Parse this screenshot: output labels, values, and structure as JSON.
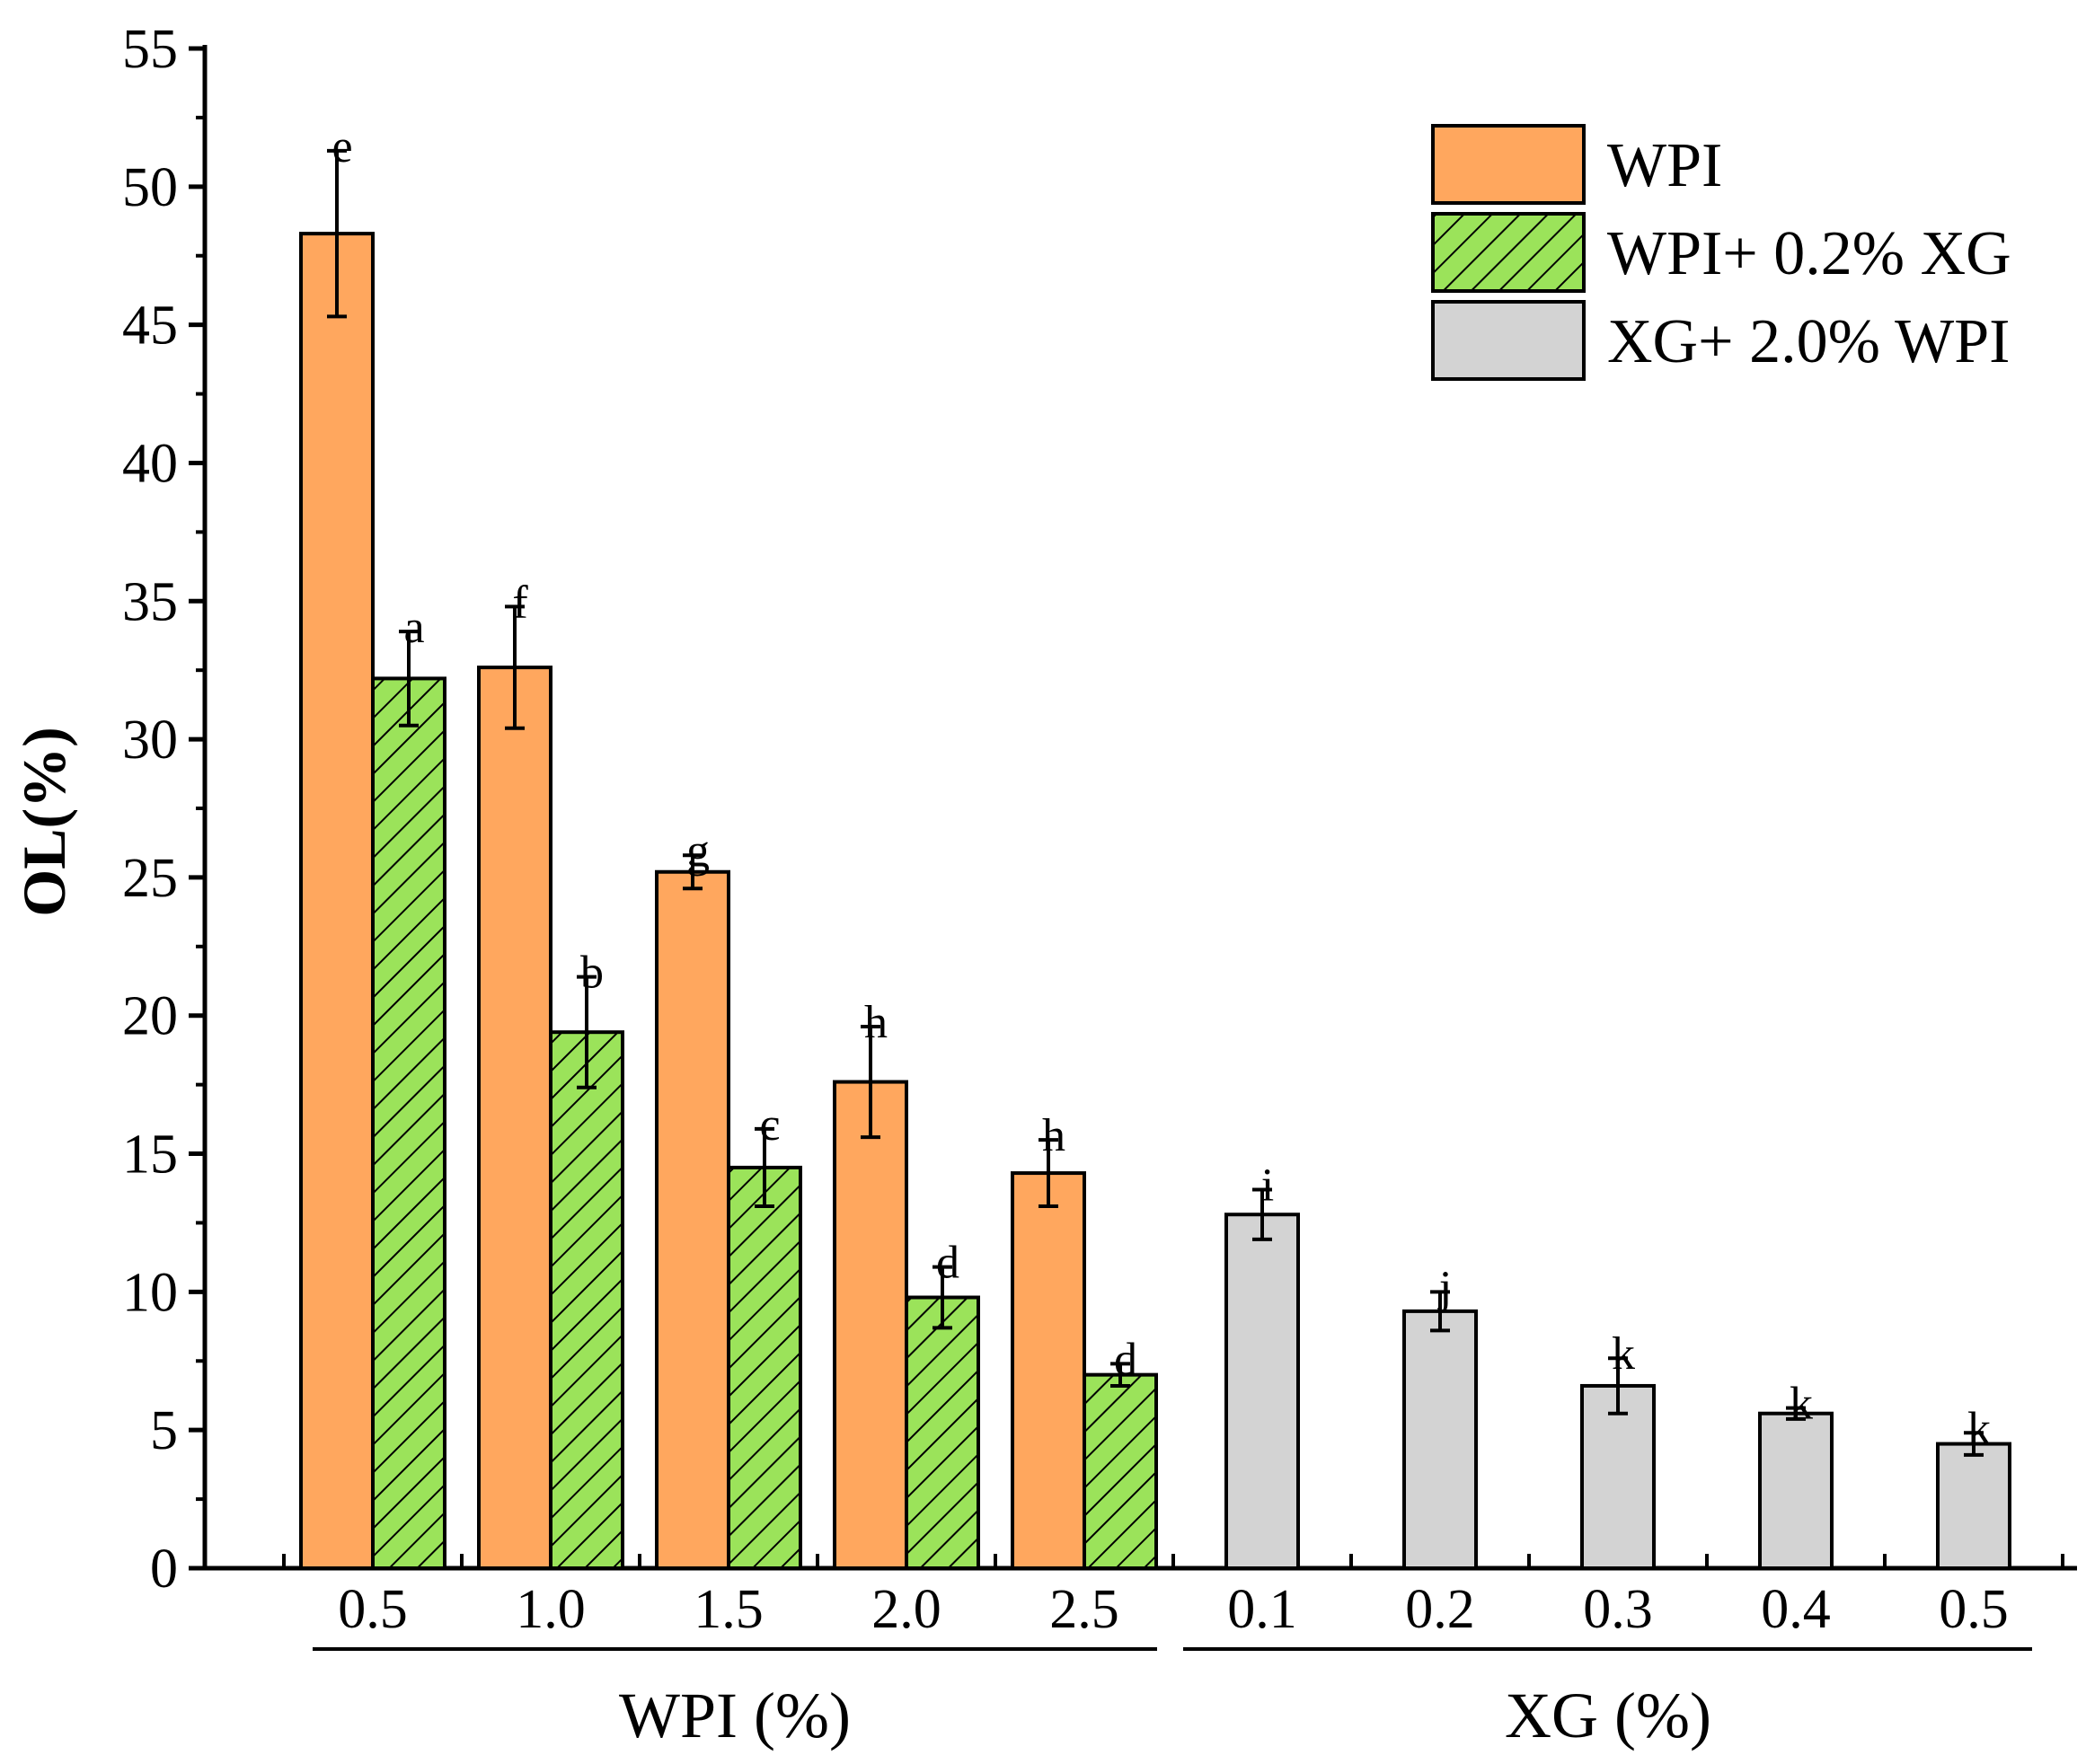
{
  "chart_data": {
    "type": "bar",
    "ylabel": "OL(%)",
    "ylim": [
      0,
      55
    ],
    "yticks": [
      0,
      5,
      10,
      15,
      20,
      25,
      30,
      35,
      40,
      45,
      50,
      55
    ],
    "groups": [
      {
        "name": "WPI (%)",
        "categories": [
          "0.5",
          "1.0",
          "1.5",
          "2.0",
          "2.5"
        ]
      },
      {
        "name": "XG (%)",
        "categories": [
          "0.1",
          "0.2",
          "0.3",
          "0.4",
          "0.5"
        ]
      }
    ],
    "series": [
      {
        "name": "WPI",
        "group": 0,
        "fill": "#FFA75E",
        "pattern": "none",
        "values": [
          48.3,
          32.6,
          25.2,
          17.6,
          14.3
        ],
        "errors": [
          3.0,
          2.2,
          0.6,
          2.0,
          1.2
        ],
        "labels": [
          "e",
          "f",
          "g",
          "h",
          "h"
        ]
      },
      {
        "name": "WPI+ 0.2% XG",
        "group": 0,
        "fill": "#9BE35A",
        "pattern": "hatch",
        "values": [
          32.2,
          19.4,
          14.5,
          9.8,
          7.0
        ],
        "errors": [
          1.7,
          2.0,
          1.4,
          1.1,
          0.4
        ],
        "labels": [
          "a",
          "b",
          "c",
          "d",
          "d"
        ]
      },
      {
        "name": "XG+ 2.0% WPI",
        "group": 1,
        "fill": "#D3D3D3",
        "pattern": "none",
        "values": [
          12.8,
          9.3,
          6.6,
          5.6,
          4.5
        ],
        "errors": [
          0.9,
          0.7,
          1.0,
          0.2,
          0.4
        ],
        "labels": [
          "i",
          "j",
          "k",
          "k",
          "k"
        ]
      }
    ],
    "legend": {
      "position": "top-right",
      "entries": [
        "WPI",
        "WPI+ 0.2% XG",
        "XG+ 2.0% WPI"
      ]
    }
  }
}
